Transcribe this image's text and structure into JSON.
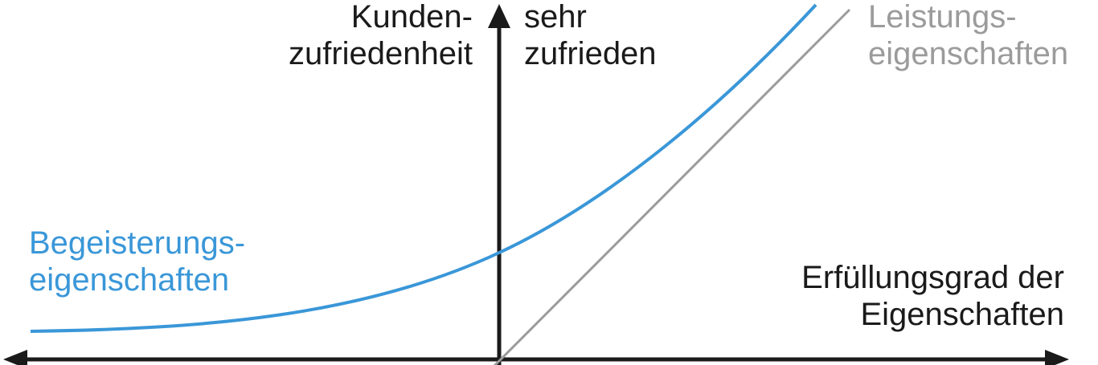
{
  "diagram": {
    "y_axis_label": [
      "Kunden-",
      "zufriedenheit"
    ],
    "y_axis_top_label": [
      "sehr",
      "zufrieden"
    ],
    "x_axis_label": [
      "Erfüllungsgrad der",
      "Eigenschaften"
    ],
    "curves": [
      {
        "name": [
          "Begeisterungs-",
          "eigenschaften"
        ],
        "color": "#3a97d8",
        "shape": "exponential"
      },
      {
        "name": [
          "Leistungs-",
          "eigenschaften"
        ],
        "color": "#9b9b9b",
        "shape": "linear"
      }
    ],
    "axis_color": "#1a1a1a"
  }
}
